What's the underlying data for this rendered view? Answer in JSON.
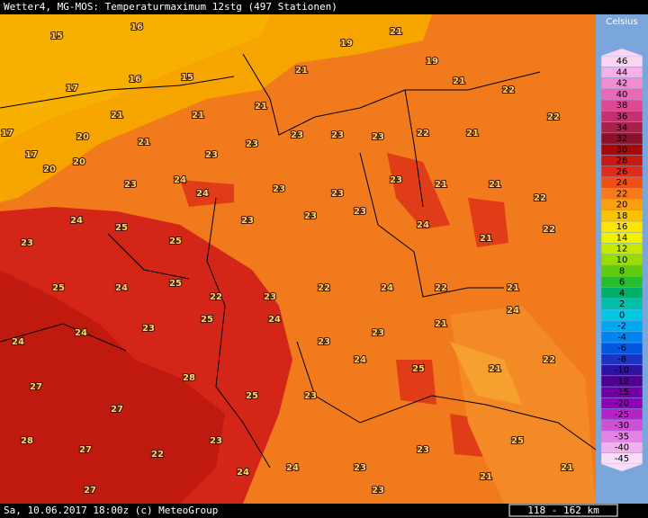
{
  "header": {
    "title": "Wetter4, MG-MOS: Temperaturmaximum 12stg (497 Stationen)"
  },
  "footer": {
    "text": "Sa, 10.06.2017 18:00z (c) MeteoGroup",
    "scale": "118 - 162 km"
  },
  "legend": {
    "title": "Celsius",
    "items": [
      {
        "label": "46",
        "color": "#fbd4f2"
      },
      {
        "label": "44",
        "color": "#f7b0e4"
      },
      {
        "label": "42",
        "color": "#f28ccf"
      },
      {
        "label": "40",
        "color": "#ea68b4"
      },
      {
        "label": "38",
        "color": "#dc4a94"
      },
      {
        "label": "36",
        "color": "#c43070"
      },
      {
        "label": "34",
        "color": "#a8204c"
      },
      {
        "label": "32",
        "color": "#8c1028"
      },
      {
        "label": "30",
        "color": "#a80808"
      },
      {
        "label": "28",
        "color": "#c81a10"
      },
      {
        "label": "26",
        "color": "#e02c18"
      },
      {
        "label": "24",
        "color": "#ec5014"
      },
      {
        "label": "22",
        "color": "#f47a1c"
      },
      {
        "label": "20",
        "color": "#f8a010"
      },
      {
        "label": "18",
        "color": "#fcc400"
      },
      {
        "label": "16",
        "color": "#ffe400"
      },
      {
        "label": "14",
        "color": "#f0f000"
      },
      {
        "label": "12",
        "color": "#c8e800"
      },
      {
        "label": "10",
        "color": "#98dc00"
      },
      {
        "label": "8",
        "color": "#60cc10"
      },
      {
        "label": "6",
        "color": "#28bc30"
      },
      {
        "label": "4",
        "color": "#00b068"
      },
      {
        "label": "2",
        "color": "#00c0a8"
      },
      {
        "label": "0",
        "color": "#00c8e0"
      },
      {
        "label": "-2",
        "color": "#00a8f0"
      },
      {
        "label": "-4",
        "color": "#0084f0"
      },
      {
        "label": "-6",
        "color": "#0058e0"
      },
      {
        "label": "-8",
        "color": "#1c34c0"
      },
      {
        "label": "-10",
        "color": "#2c14a0"
      },
      {
        "label": "-12",
        "color": "#500090"
      },
      {
        "label": "-15",
        "color": "#7000a4"
      },
      {
        "label": "-20",
        "color": "#9200b4"
      },
      {
        "label": "-25",
        "color": "#b424c4"
      },
      {
        "label": "-30",
        "color": "#d050d4"
      },
      {
        "label": "-35",
        "color": "#e284e4"
      },
      {
        "label": "-40",
        "color": "#eeb2ee"
      },
      {
        "label": "-45",
        "color": "#f8dcf8"
      }
    ]
  },
  "stations": [
    15,
    16,
    16,
    15,
    17,
    17,
    17,
    20,
    20,
    20,
    21,
    21,
    21,
    21,
    21,
    19,
    21,
    19,
    21,
    22,
    22,
    21,
    22,
    23,
    23,
    23,
    23,
    23,
    23,
    24,
    24,
    23,
    23,
    23,
    21,
    21,
    22,
    24,
    25,
    25,
    23,
    23,
    23,
    24,
    21,
    22,
    23,
    25,
    24,
    25,
    22,
    23,
    22,
    24,
    22,
    21,
    24,
    24,
    23,
    25,
    24,
    23,
    23,
    21,
    24,
    27,
    27,
    28,
    25,
    23,
    24,
    25,
    21,
    22,
    28,
    27,
    22,
    23,
    24,
    23,
    23,
    25,
    21,
    27,
    24,
    23,
    21
  ]
}
